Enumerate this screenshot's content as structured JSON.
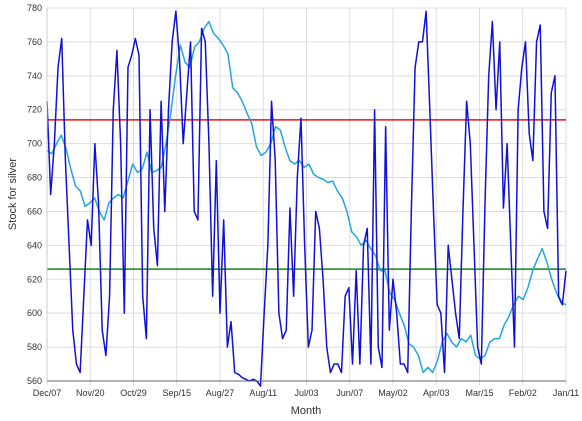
{
  "chart_data": {
    "type": "line",
    "title": "",
    "xlabel": "Month",
    "ylabel": "Stock for silver",
    "ylim": [
      560,
      780
    ],
    "yticks": [
      560,
      580,
      600,
      620,
      640,
      660,
      680,
      700,
      720,
      740,
      760,
      780
    ],
    "xticks": [
      "Dec/07",
      "Nov/20",
      "Oct/29",
      "Sep/15",
      "Aug/27",
      "Aug/11",
      "Jul/03",
      "Jun/07",
      "May/02",
      "Apr/03",
      "Mar/15",
      "Feb/02",
      "Jan/11"
    ],
    "grid": true,
    "series": [
      {
        "color": "#1010d8",
        "values": [
          725,
          670,
          700,
          745,
          762,
          690,
          640,
          590,
          570,
          565,
          610,
          655,
          640,
          700,
          665,
          590,
          575,
          610,
          720,
          755,
          700,
          600,
          745,
          752,
          762,
          752,
          610,
          585,
          720,
          650,
          628,
          725,
          660,
          720,
          760,
          778,
          750,
          700,
          730,
          760,
          660,
          655,
          768,
          760,
          700,
          610,
          690,
          600,
          655,
          580,
          595,
          565,
          564,
          562,
          561,
          560,
          561,
          560,
          557,
          600,
          640,
          725,
          690,
          600,
          585,
          590,
          662,
          610,
          680,
          715,
          640,
          580,
          590,
          660,
          650,
          620,
          580,
          565,
          570,
          570,
          565,
          610,
          615,
          570,
          625,
          570,
          640,
          650,
          570,
          720,
          580,
          568,
          710,
          590,
          620,
          600,
          570,
          570,
          565,
          662,
          745,
          760,
          760,
          778,
          720,
          660,
          605,
          600,
          565,
          640,
          620,
          600,
          585,
          660,
          725,
          700,
          640,
          580,
          570,
          665,
          740,
          772,
          720,
          760,
          662,
          700,
          640,
          580,
          720,
          745,
          760,
          706,
          690,
          760,
          770,
          660,
          650,
          730,
          740,
          610,
          605,
          625
        ],
        "stroke_width": 1.5
      },
      {
        "color": "#22a6dc",
        "values": [
          696,
          694,
          700,
          705,
          697,
          685,
          675,
          672,
          663,
          665,
          668,
          660,
          655,
          665,
          668,
          670,
          668,
          678,
          688,
          683,
          685,
          695,
          683,
          684,
          686,
          700,
          718,
          740,
          758,
          748,
          745,
          757,
          760,
          768,
          772,
          765,
          762,
          758,
          753,
          733,
          730,
          725,
          718,
          712,
          698,
          693,
          695,
          700,
          710,
          708,
          698,
          690,
          688,
          690,
          686,
          688,
          682,
          680,
          679,
          677,
          678,
          672,
          668,
          660,
          648,
          645,
          640,
          643,
          638,
          634,
          625,
          625,
          612,
          608,
          600,
          593,
          582,
          580,
          575,
          565,
          568,
          565,
          572,
          583,
          588,
          583,
          580,
          585,
          583,
          587,
          575,
          573,
          575,
          583,
          585,
          585,
          593,
          598,
          605,
          610,
          608,
          615,
          625,
          632,
          638,
          630,
          620,
          612,
          606,
          605
        ],
        "stroke_width": 1.5
      },
      {
        "color": "#ee1010",
        "values": [
          714,
          714
        ],
        "stroke_width": 1.5
      },
      {
        "color": "#108a10",
        "values": [
          626,
          626
        ],
        "stroke_width": 1.5
      }
    ]
  }
}
